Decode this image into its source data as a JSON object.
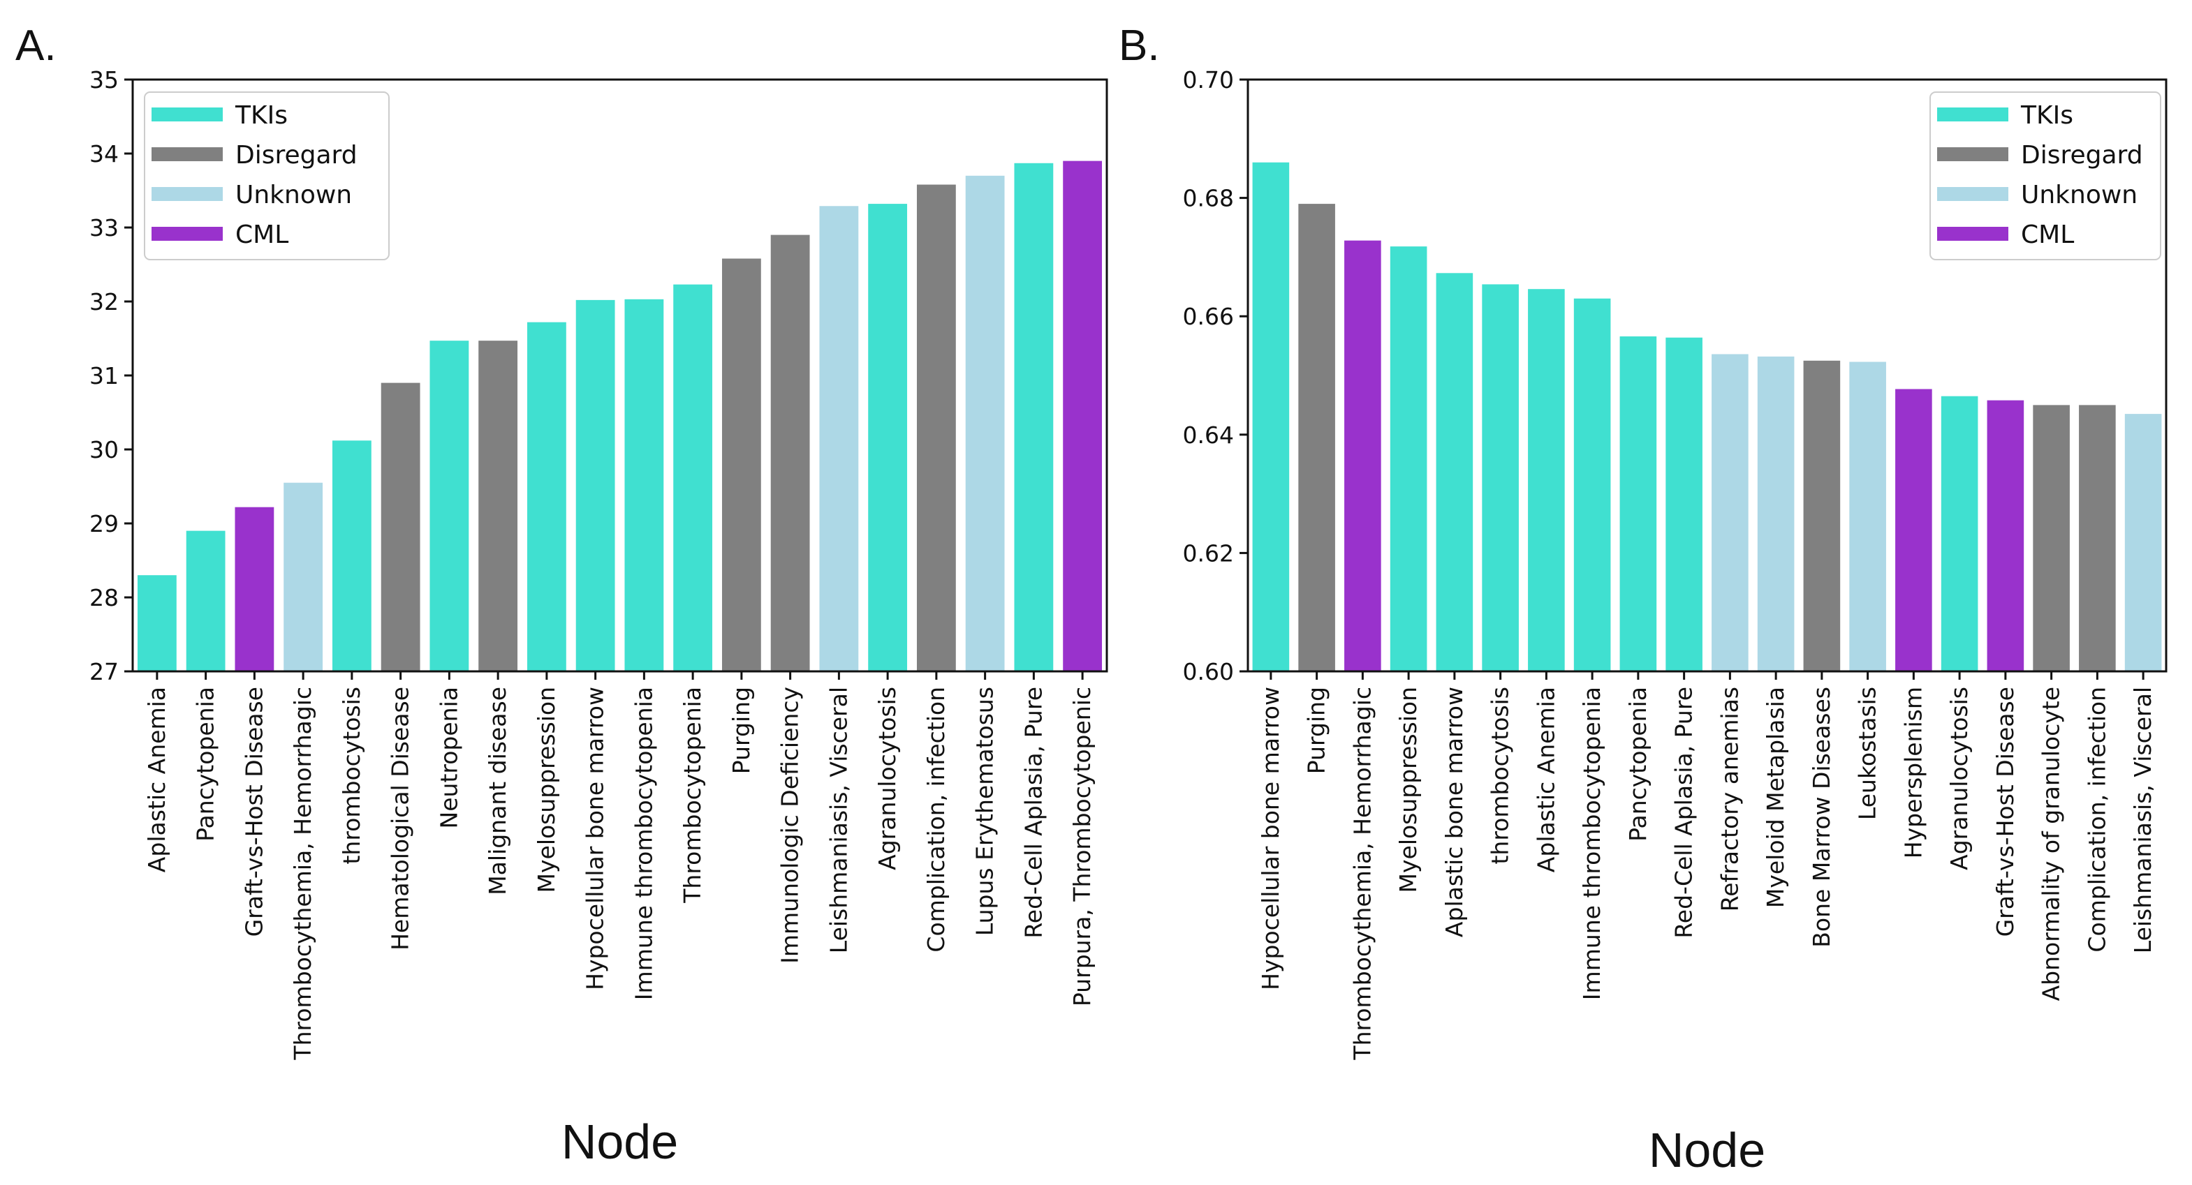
{
  "chart_data": [
    {
      "panel_label": "A.",
      "type": "bar",
      "xlabel": "Node",
      "ylabel": "",
      "ylim": [
        27,
        35
      ],
      "yticks": [
        "27",
        "28",
        "29",
        "30",
        "31",
        "32",
        "33",
        "34",
        "35"
      ],
      "legend_position": "top-left",
      "legend": [
        {
          "label": "TKIs",
          "color": "#40E0D0"
        },
        {
          "label": "Disregard",
          "color": "#808080"
        },
        {
          "label": "Unknown",
          "color": "#ADD8E6"
        },
        {
          "label": "CML",
          "color": "#9932CC"
        }
      ],
      "categories": [
        "Aplastic Anemia",
        "Pancytopenia",
        "Graft-vs-Host Disease",
        "Thrombocythemia, Hemorrhagic",
        "thrombocytosis",
        "Hematological Disease",
        "Neutropenia",
        "Malignant disease",
        "Myelosuppression",
        "Hypocellular bone marrow",
        "Immune thrombocytopenia",
        "Thrombocytopenia",
        "Purging",
        "Immunologic Deficiency",
        "Leishmaniasis, Visceral",
        "Agranulocytosis",
        "Complication, infection",
        "Lupus Erythematosus",
        "Red-Cell Aplasia, Pure",
        "Purpura, Thrombocytopenic"
      ],
      "values": [
        28.3,
        28.9,
        29.22,
        29.55,
        30.12,
        30.9,
        31.47,
        31.47,
        31.72,
        32.02,
        32.03,
        32.23,
        32.58,
        32.9,
        33.29,
        33.32,
        33.58,
        33.7,
        33.87,
        33.9
      ],
      "groups": [
        "TKIs",
        "TKIs",
        "CML",
        "Unknown",
        "TKIs",
        "Disregard",
        "TKIs",
        "Disregard",
        "TKIs",
        "TKIs",
        "TKIs",
        "TKIs",
        "Disregard",
        "Disregard",
        "Unknown",
        "TKIs",
        "Disregard",
        "Unknown",
        "TKIs",
        "CML"
      ]
    },
    {
      "panel_label": "B.",
      "type": "bar",
      "xlabel": "Node",
      "ylabel": "",
      "ylim": [
        0.6,
        0.7
      ],
      "yticks": [
        "0.60",
        "0.62",
        "0.64",
        "0.66",
        "0.68",
        "0.70"
      ],
      "legend_position": "top-right",
      "legend": [
        {
          "label": "TKIs",
          "color": "#40E0D0"
        },
        {
          "label": "Disregard",
          "color": "#808080"
        },
        {
          "label": "Unknown",
          "color": "#ADD8E6"
        },
        {
          "label": "CML",
          "color": "#9932CC"
        }
      ],
      "categories": [
        "Hypocellular bone marrow",
        "Purging",
        "Thrombocythemia, Hemorrhagic",
        "Myelosuppression",
        "Aplastic bone marrow",
        "thrombocytosis",
        "Aplastic Anemia",
        "Immune thrombocytopenia",
        "Pancytopenia",
        "Red-Cell Aplasia, Pure",
        "Refractory anemias",
        "Myeloid Metaplasia",
        "Bone Marrow Diseases",
        "Leukostasis",
        "Hypersplenism",
        "Agranulocytosis",
        "Graft-vs-Host Disease",
        "Abnormality of granulocyte",
        "Complication, infection",
        "Leishmaniasis, Visceral"
      ],
      "values": [
        0.686,
        0.679,
        0.6728,
        0.6718,
        0.6673,
        0.6654,
        0.6646,
        0.663,
        0.6566,
        0.6564,
        0.6536,
        0.6532,
        0.6525,
        0.6523,
        0.6477,
        0.6465,
        0.6458,
        0.645,
        0.645,
        0.6435
      ],
      "groups": [
        "TKIs",
        "Disregard",
        "CML",
        "TKIs",
        "TKIs",
        "TKIs",
        "TKIs",
        "TKIs",
        "TKIs",
        "TKIs",
        "Unknown",
        "Unknown",
        "Disregard",
        "Unknown",
        "CML",
        "TKIs",
        "CML",
        "Disregard",
        "Disregard",
        "Unknown"
      ]
    }
  ]
}
